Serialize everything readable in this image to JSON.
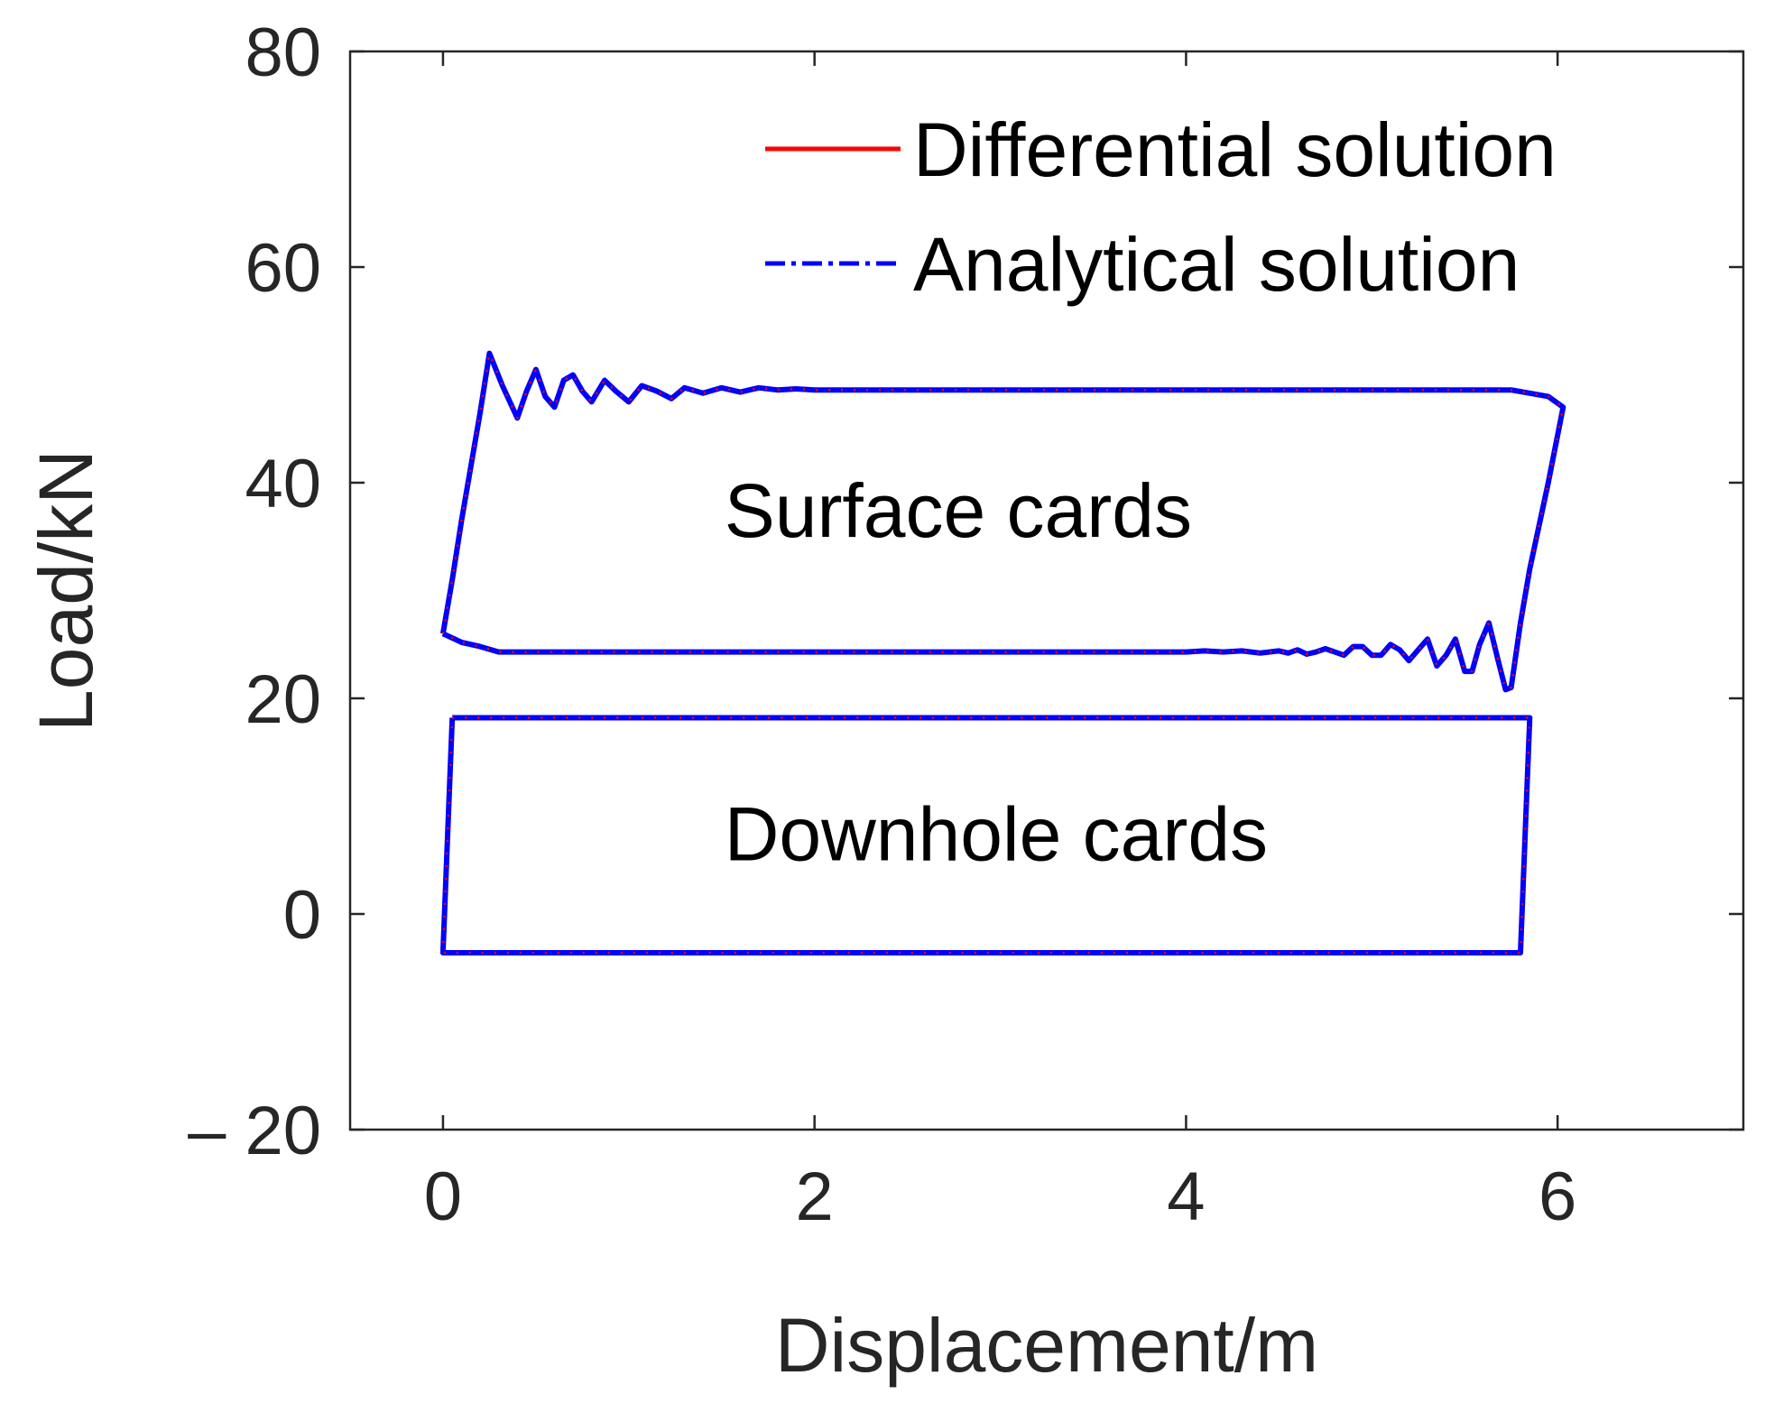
{
  "chart_data": {
    "type": "line",
    "title": "",
    "xlabel": "Displacement/m",
    "ylabel": "Load/kN",
    "xlim": [
      -0.5,
      7
    ],
    "ylim": [
      -20,
      80
    ],
    "xticks": [
      0,
      2,
      4,
      6
    ],
    "yticks": [
      -20,
      0,
      20,
      40,
      60,
      80
    ],
    "xtick_labels": [
      "0",
      "2",
      "4",
      "6"
    ],
    "ytick_labels": [
      "– 20",
      "0",
      "20",
      "40",
      "60",
      "80"
    ],
    "grid": false,
    "legend_position": "top-right",
    "colors": {
      "differential": "#ff0000",
      "analytical": "#0000ff",
      "axes": "#262626"
    },
    "legend": [
      {
        "label": "Differential solution",
        "style": "solid",
        "color": "#ff0000"
      },
      {
        "label": "Analytical solution",
        "style": "dash-dot",
        "color": "#0000ff"
      }
    ],
    "annotations": [
      {
        "text": "Surface cards",
        "x": 1.5,
        "y": 37.5
      },
      {
        "text": "Downhole cards",
        "x": 1.5,
        "y": 7.5
      }
    ],
    "curves": [
      {
        "id": "surface-card",
        "x": [
          0.0,
          0.05,
          0.1,
          0.15,
          0.2,
          0.25,
          0.32,
          0.4,
          0.45,
          0.5,
          0.55,
          0.6,
          0.65,
          0.7,
          0.75,
          0.8,
          0.87,
          0.93,
          1.0,
          1.07,
          1.15,
          1.23,
          1.3,
          1.4,
          1.5,
          1.6,
          1.7,
          1.8,
          1.9,
          2.0,
          2.5,
          3.0,
          3.5,
          4.0,
          4.5,
          5.0,
          5.5,
          5.75,
          5.85,
          5.95,
          6.03,
          5.95,
          5.85,
          5.8,
          5.75,
          5.72,
          5.68,
          5.63,
          5.58,
          5.54,
          5.5,
          5.45,
          5.4,
          5.35,
          5.3,
          5.25,
          5.2,
          5.15,
          5.1,
          5.05,
          5.0,
          4.95,
          4.9,
          4.85,
          4.8,
          4.75,
          4.7,
          4.65,
          4.6,
          4.55,
          4.5,
          4.4,
          4.3,
          4.2,
          4.1,
          4.0,
          3.5,
          3.0,
          2.5,
          2.0,
          1.5,
          1.0,
          0.5,
          0.3,
          0.2,
          0.1,
          0.0
        ],
        "y": [
          26.0,
          31.0,
          36.5,
          41.5,
          46.5,
          52.0,
          49.0,
          46.0,
          48.5,
          50.5,
          48.0,
          47.0,
          49.5,
          50.0,
          48.5,
          47.5,
          49.5,
          48.5,
          47.5,
          49.0,
          48.5,
          47.8,
          48.8,
          48.3,
          48.8,
          48.4,
          48.8,
          48.6,
          48.7,
          48.6,
          48.6,
          48.6,
          48.6,
          48.6,
          48.6,
          48.6,
          48.6,
          48.6,
          48.3,
          48.0,
          47.0,
          40.0,
          32.0,
          27.0,
          21.0,
          20.8,
          23.5,
          27.0,
          25.0,
          22.5,
          22.5,
          25.5,
          24.0,
          23.0,
          25.5,
          24.5,
          23.5,
          24.5,
          25.0,
          24.0,
          24.0,
          24.8,
          24.8,
          24.0,
          24.3,
          24.6,
          24.3,
          24.1,
          24.5,
          24.2,
          24.4,
          24.2,
          24.4,
          24.3,
          24.4,
          24.3,
          24.3,
          24.3,
          24.3,
          24.3,
          24.3,
          24.3,
          24.3,
          24.3,
          24.8,
          25.2,
          26.0
        ]
      },
      {
        "id": "downhole-card",
        "x": [
          0.05,
          5.85,
          5.8,
          0.0,
          0.05
        ],
        "y": [
          18.2,
          18.2,
          -3.6,
          -3.6,
          18.2
        ]
      }
    ]
  }
}
